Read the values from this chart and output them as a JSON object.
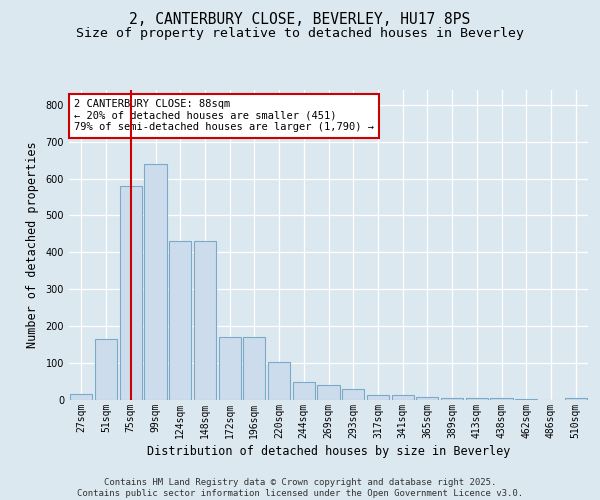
{
  "title_line1": "2, CANTERBURY CLOSE, BEVERLEY, HU17 8PS",
  "title_line2": "Size of property relative to detached houses in Beverley",
  "xlabel": "Distribution of detached houses by size in Beverley",
  "ylabel": "Number of detached properties",
  "categories": [
    "27sqm",
    "51sqm",
    "75sqm",
    "99sqm",
    "124sqm",
    "148sqm",
    "172sqm",
    "196sqm",
    "220sqm",
    "244sqm",
    "269sqm",
    "293sqm",
    "317sqm",
    "341sqm",
    "365sqm",
    "389sqm",
    "413sqm",
    "438sqm",
    "462sqm",
    "486sqm",
    "510sqm"
  ],
  "values": [
    15,
    165,
    580,
    640,
    430,
    430,
    170,
    170,
    103,
    50,
    40,
    30,
    13,
    13,
    8,
    6,
    6,
    5,
    4,
    1,
    5
  ],
  "bar_color": "#ccdcec",
  "bar_edge_color": "#7aaac8",
  "vline_color": "#cc0000",
  "annotation_text": "2 CANTERBURY CLOSE: 88sqm\n← 20% of detached houses are smaller (451)\n79% of semi-detached houses are larger (1,790) →",
  "annotation_box_color": "#ffffff",
  "annotation_box_edge": "#cc0000",
  "ylim": [
    0,
    840
  ],
  "yticks": [
    0,
    100,
    200,
    300,
    400,
    500,
    600,
    700,
    800
  ],
  "background_color": "#dce8f0",
  "plot_bg_color": "#dce8f0",
  "grid_color": "#ffffff",
  "footer": "Contains HM Land Registry data © Crown copyright and database right 2025.\nContains public sector information licensed under the Open Government Licence v3.0.",
  "title_fontsize": 10.5,
  "subtitle_fontsize": 9.5,
  "tick_fontsize": 7,
  "label_fontsize": 8.5,
  "footer_fontsize": 6.5
}
